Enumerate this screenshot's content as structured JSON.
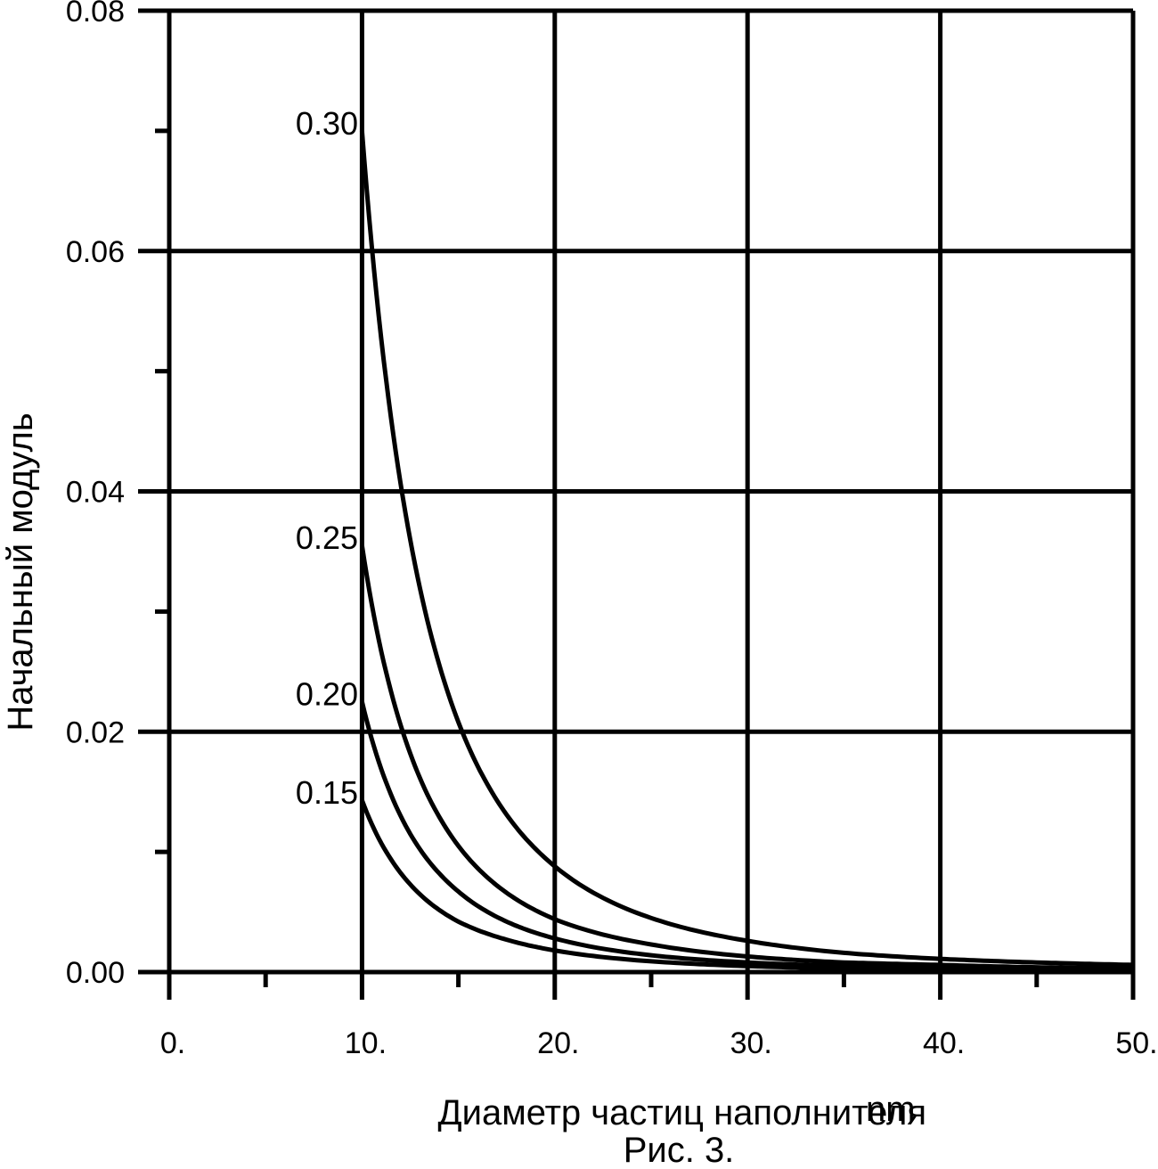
{
  "chart_data": {
    "type": "line",
    "xlabel": "Диаметр частиц наполнителя",
    "xunit": "nm",
    "ylabel": "Начальный модуль",
    "caption": "Рис. 3.",
    "xlim": [
      0,
      50
    ],
    "ylim": [
      0,
      0.08
    ],
    "x_ticks": [
      0,
      10,
      20,
      30,
      40,
      50
    ],
    "x_tick_labels": [
      "0.",
      "10.",
      "20.",
      "30.",
      "40.",
      "50."
    ],
    "y_ticks": [
      0,
      0.02,
      0.04,
      0.06,
      0.08
    ],
    "y_tick_labels": [
      "0.00",
      "0.02",
      "0.04",
      "0.06",
      "0.08"
    ],
    "grid": true,
    "series": [
      {
        "name": "0.30",
        "x": [
          10,
          12.5,
          15,
          17.5,
          20,
          25,
          30,
          35,
          40,
          45,
          50
        ],
        "values": [
          0.07,
          0.036,
          0.0208,
          0.0131,
          0.0088,
          0.0045,
          0.0026,
          0.0016,
          0.0011,
          0.0008,
          0.0006
        ]
      },
      {
        "name": "0.25",
        "x": [
          10,
          12.5,
          15,
          17.5,
          20,
          25,
          30,
          35,
          40,
          45,
          50
        ],
        "values": [
          0.0355,
          0.0182,
          0.0105,
          0.0066,
          0.0044,
          0.0023,
          0.0013,
          0.0008,
          0.0006,
          0.0004,
          0.0003
        ]
      },
      {
        "name": "0.20",
        "x": [
          10,
          12.5,
          15,
          17.5,
          20,
          25,
          30,
          35,
          40,
          45,
          50
        ],
        "values": [
          0.0225,
          0.0115,
          0.0067,
          0.0042,
          0.0028,
          0.0014,
          0.0008,
          0.0005,
          0.0004,
          0.0003,
          0.0002
        ]
      },
      {
        "name": "0.15",
        "x": [
          10,
          12.5,
          15,
          17.5,
          20,
          25,
          30,
          35,
          40,
          45,
          50
        ],
        "values": [
          0.0143,
          0.0073,
          0.0042,
          0.0027,
          0.0018,
          0.0009,
          0.0005,
          0.0003,
          0.0002,
          0.0002,
          0.0001
        ]
      }
    ]
  }
}
